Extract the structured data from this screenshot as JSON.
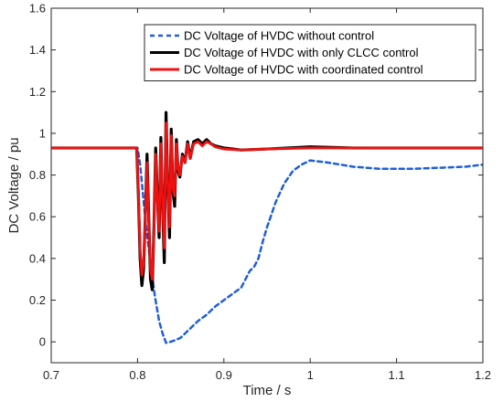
{
  "chart_data": {
    "type": "line",
    "xlabel": "Time / s",
    "ylabel": "DC Voltage / pu",
    "xlim": [
      0.7,
      1.2
    ],
    "ylim": [
      -0.1,
      1.6
    ],
    "xticks": [
      "0.7",
      "0.8",
      "0.9",
      "1",
      "1.1",
      "1.2"
    ],
    "yticks": [
      "0",
      "0.2",
      "0.4",
      "0.6",
      "0.8",
      "1",
      "1.2",
      "1.4",
      "1.6"
    ],
    "grid": false,
    "legend_position": "top-right",
    "series": [
      {
        "name": "DC Voltage of HVDC without control",
        "color": "#1f5fd6",
        "style": "dashed",
        "x": [
          0.7,
          0.8,
          0.803,
          0.806,
          0.81,
          0.815,
          0.82,
          0.825,
          0.829,
          0.833,
          0.838,
          0.845,
          0.85,
          0.86,
          0.87,
          0.88,
          0.89,
          0.9,
          0.91,
          0.92,
          0.925,
          0.93,
          0.935,
          0.94,
          0.945,
          0.95,
          0.96,
          0.97,
          0.98,
          0.99,
          1.0,
          1.02,
          1.05,
          1.08,
          1.1,
          1.12,
          1.15,
          1.18,
          1.2
        ],
        "y": [
          0.93,
          0.93,
          0.85,
          0.72,
          0.55,
          0.38,
          0.22,
          0.1,
          0.04,
          -0.005,
          0.0,
          0.01,
          0.02,
          0.06,
          0.1,
          0.13,
          0.17,
          0.2,
          0.23,
          0.26,
          0.3,
          0.34,
          0.36,
          0.4,
          0.48,
          0.55,
          0.67,
          0.76,
          0.82,
          0.85,
          0.87,
          0.86,
          0.84,
          0.83,
          0.83,
          0.83,
          0.835,
          0.84,
          0.85
        ]
      },
      {
        "name": "DC Voltage of HVDC with only CLCC control",
        "color": "#000000",
        "style": "solid",
        "x": [
          0.7,
          0.799,
          0.801,
          0.803,
          0.805,
          0.807,
          0.809,
          0.811,
          0.813,
          0.815,
          0.817,
          0.819,
          0.821,
          0.823,
          0.825,
          0.827,
          0.829,
          0.831,
          0.833,
          0.835,
          0.837,
          0.839,
          0.841,
          0.843,
          0.845,
          0.847,
          0.849,
          0.852,
          0.855,
          0.858,
          0.861,
          0.865,
          0.87,
          0.875,
          0.88,
          0.885,
          0.89,
          0.9,
          0.92,
          0.95,
          1.0,
          1.05,
          1.1,
          1.15,
          1.2
        ],
        "y": [
          0.93,
          0.93,
          0.7,
          0.4,
          0.27,
          0.35,
          0.6,
          0.9,
          0.6,
          0.3,
          0.25,
          0.55,
          0.93,
          0.7,
          0.5,
          0.98,
          0.65,
          0.38,
          1.1,
          0.75,
          0.5,
          1.02,
          0.72,
          0.65,
          0.97,
          0.82,
          0.79,
          0.9,
          0.86,
          0.96,
          0.88,
          0.96,
          0.97,
          0.95,
          0.97,
          0.95,
          0.94,
          0.93,
          0.92,
          0.925,
          0.935,
          0.93,
          0.93,
          0.93,
          0.93
        ]
      },
      {
        "name": "DC Voltage of HVDC with coordinated control",
        "color": "#ee1111",
        "style": "solid",
        "x": [
          0.7,
          0.799,
          0.801,
          0.803,
          0.805,
          0.807,
          0.809,
          0.811,
          0.813,
          0.815,
          0.817,
          0.819,
          0.821,
          0.823,
          0.825,
          0.827,
          0.829,
          0.831,
          0.833,
          0.835,
          0.837,
          0.839,
          0.841,
          0.843,
          0.845,
          0.847,
          0.849,
          0.852,
          0.855,
          0.858,
          0.861,
          0.865,
          0.87,
          0.875,
          0.88,
          0.885,
          0.89,
          0.9,
          0.92,
          0.95,
          1.0,
          1.05,
          1.1,
          1.15,
          1.2
        ],
        "y": [
          0.93,
          0.93,
          0.72,
          0.44,
          0.32,
          0.38,
          0.58,
          0.86,
          0.58,
          0.35,
          0.3,
          0.52,
          0.9,
          0.68,
          0.53,
          0.95,
          0.66,
          0.45,
          1.05,
          0.76,
          0.55,
          0.99,
          0.73,
          0.7,
          0.95,
          0.83,
          0.8,
          0.89,
          0.86,
          0.95,
          0.88,
          0.95,
          0.96,
          0.94,
          0.96,
          0.95,
          0.935,
          0.925,
          0.92,
          0.925,
          0.93,
          0.93,
          0.93,
          0.93,
          0.93
        ]
      }
    ]
  }
}
